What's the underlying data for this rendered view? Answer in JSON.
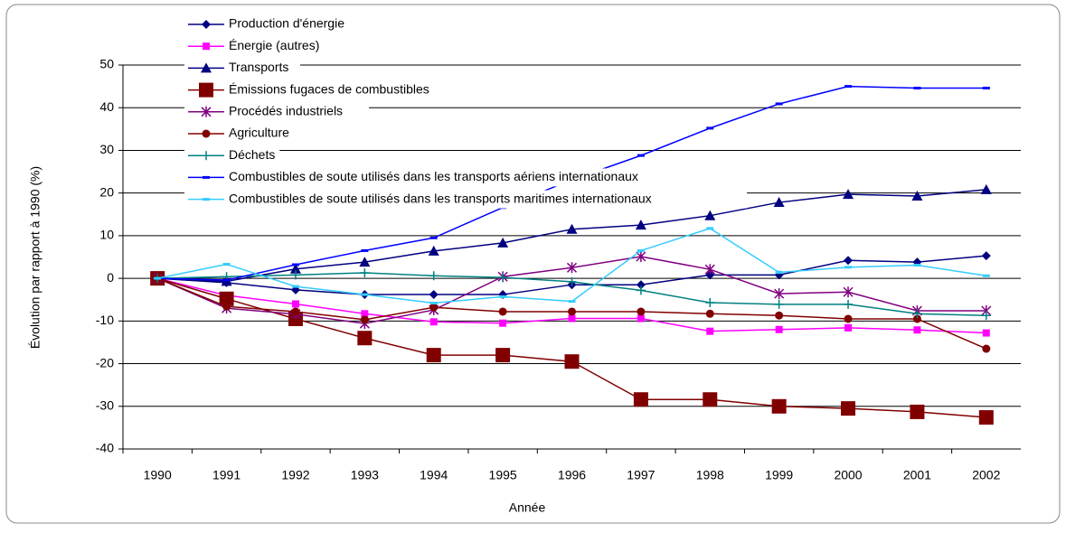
{
  "chart_data": {
    "type": "line",
    "x_label": "Année",
    "y_label": "Évolution par rapport à 1990 (%)",
    "categories": [
      "1990",
      "1991",
      "1992",
      "1993",
      "1994",
      "1995",
      "1996",
      "1997",
      "1998",
      "1999",
      "2000",
      "2001",
      "2002"
    ],
    "ylim": [
      -40,
      50
    ],
    "yticks": [
      -40,
      -30,
      -20,
      -10,
      0,
      10,
      20,
      30,
      40,
      50
    ],
    "grid": true,
    "legend": "top-left",
    "series": [
      {
        "name": "Production d'énergie",
        "color": "#000080",
        "marker": "diamond",
        "values": [
          0,
          -1,
          -2.7,
          -3.8,
          -3.8,
          -3.8,
          -1.5,
          -1.5,
          0.8,
          0.8,
          4.2,
          3.8,
          5.3
        ]
      },
      {
        "name": "Énergie (autres)",
        "color": "#ff00ff",
        "marker": "square",
        "values": [
          0,
          -4,
          -6,
          -8.3,
          -10.2,
          -10.5,
          -9.4,
          -9.4,
          -12.4,
          -12,
          -11.6,
          -12.1,
          -12.8
        ]
      },
      {
        "name": "Transports",
        "color": "#000080",
        "marker": "triangle",
        "values": [
          0,
          -0.7,
          2.2,
          3.8,
          6.4,
          8.3,
          11.5,
          12.5,
          14.7,
          17.8,
          19.7,
          19.3,
          20.8
        ]
      },
      {
        "name": "Émissions fugaces de combustibles",
        "color": "#800000",
        "marker": "bigsquare",
        "values": [
          0,
          -4.8,
          -9.5,
          -14,
          -18,
          -18,
          -19.5,
          -28.4,
          -28.4,
          -30,
          -30.5,
          -31.3,
          -32.6
        ]
      },
      {
        "name": "Procédés industriels",
        "color": "#800080",
        "marker": "asterisk",
        "values": [
          0,
          -7,
          -8.4,
          -10.6,
          -7.4,
          0.4,
          2.5,
          5.1,
          2.1,
          -3.6,
          -3.2,
          -7.6,
          -7.6
        ]
      },
      {
        "name": "Agriculture",
        "color": "#800000",
        "marker": "circle",
        "values": [
          0,
          -6.6,
          -7.8,
          -9.7,
          -6.8,
          -7.8,
          -7.8,
          -7.8,
          -8.3,
          -8.7,
          -9.5,
          -9.5,
          -16.5
        ]
      },
      {
        "name": "Déchets",
        "color": "#008080",
        "marker": "plus",
        "values": [
          0,
          0.4,
          0.8,
          1.3,
          0.6,
          0.2,
          -0.8,
          -2.8,
          -5.7,
          -6.1,
          -6.1,
          -8.3,
          -8.7
        ]
      },
      {
        "name": "Combustibles de soute utilisés dans les transports aériens internationaux",
        "color": "#0000ff",
        "marker": "dash",
        "values": [
          0,
          -0.4,
          3.2,
          6.5,
          9.5,
          16.6,
          23.1,
          28.8,
          35.2,
          40.9,
          45,
          44.6,
          44.6
        ]
      },
      {
        "name": "Combustibles de soute utilisés dans les transports maritimes internationaux",
        "color": "#33ccff",
        "marker": "dash",
        "values": [
          0,
          3.3,
          -1.9,
          -3.8,
          -5.8,
          -4.3,
          -5.4,
          6.5,
          11.7,
          1.4,
          2.6,
          3.1,
          0.6
        ]
      }
    ]
  }
}
